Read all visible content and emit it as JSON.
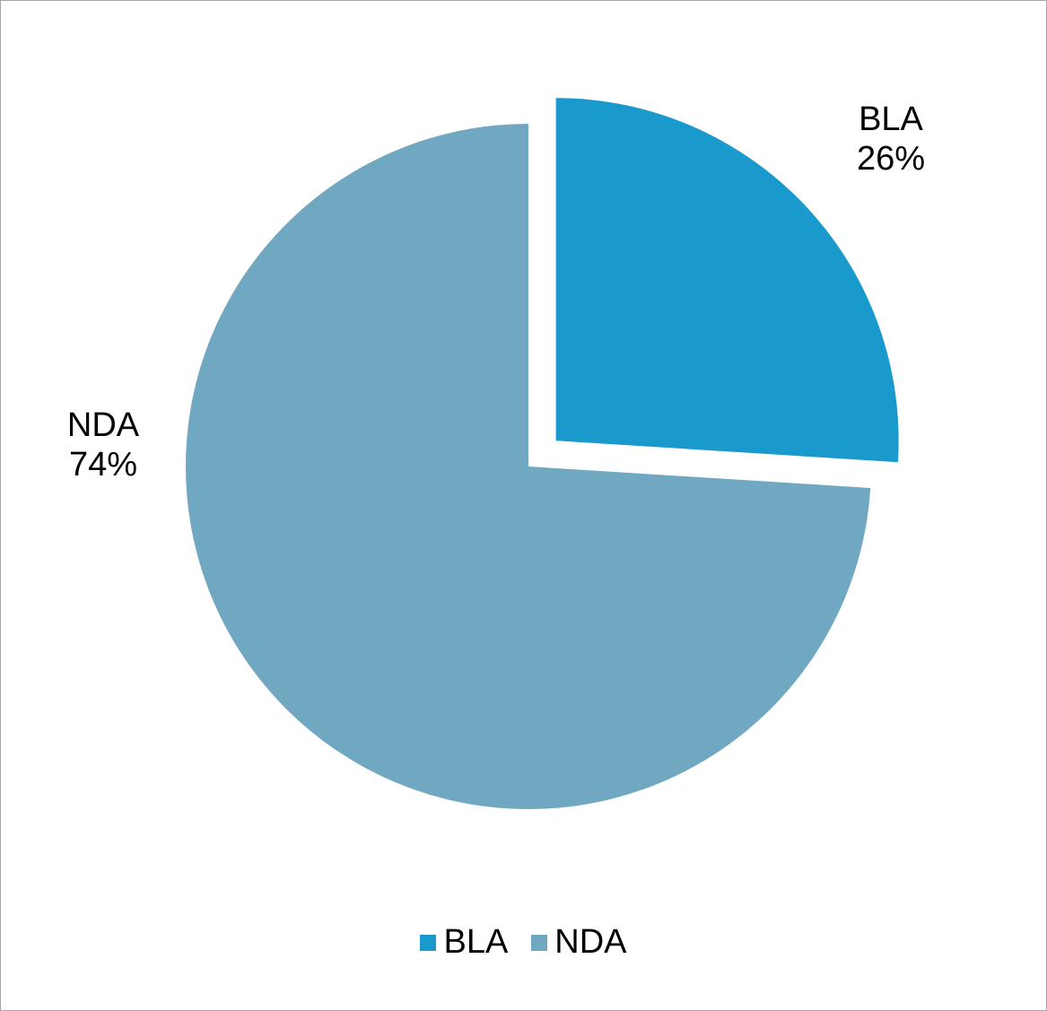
{
  "chart_data": {
    "type": "pie",
    "slices": [
      {
        "label": "BLA",
        "value": 26,
        "pct_label": "26%",
        "color": "#1a99cc",
        "exploded": true
      },
      {
        "label": "NDA",
        "value": 74,
        "pct_label": "74%",
        "color": "#70a8c2",
        "exploded": false
      }
    ],
    "legend": {
      "placement": "bottom",
      "items": [
        "BLA",
        "NDA"
      ]
    },
    "title": ""
  }
}
